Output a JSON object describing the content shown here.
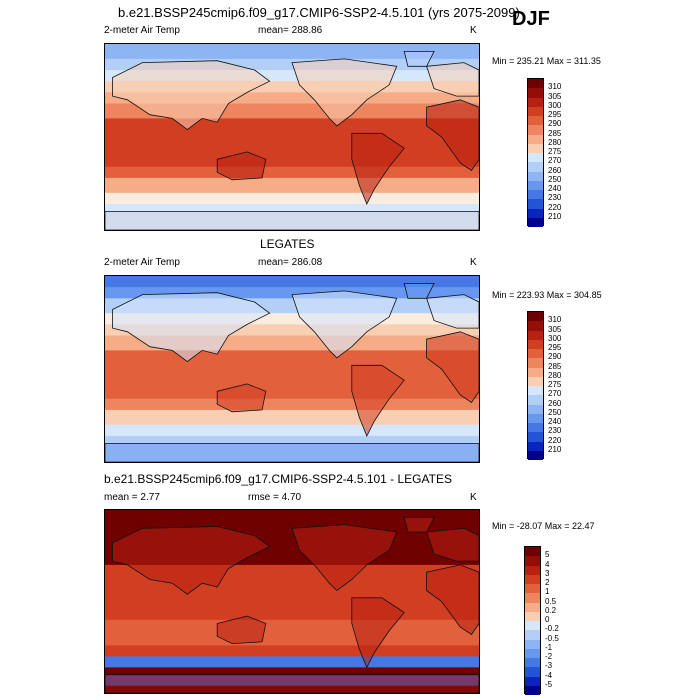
{
  "figure": {
    "title": "b.e21.BSSP245cmip6.f09_g17.CMIP6-SSP2-4.5.101 (yrs 2075-2099)",
    "season": "DJF"
  },
  "colors": {
    "palette_temp": [
      "#00008f",
      "#0a24c0",
      "#2353d6",
      "#4677e6",
      "#6797ee",
      "#8db4f3",
      "#b2cff7",
      "#d6e6fb",
      "#fbece0",
      "#f9cfb4",
      "#f5ac87",
      "#ee855f",
      "#e3603c",
      "#d23e22",
      "#b82012",
      "#960c06",
      "#6e0000"
    ],
    "palette_diff": [
      "#00008f",
      "#0a24c0",
      "#2353d6",
      "#4677e6",
      "#6797ee",
      "#8db4f3",
      "#b2cff7",
      "#d6e6fb",
      "#fbece0",
      "#f9cfb4",
      "#f5ac87",
      "#ee855f",
      "#e3603c",
      "#d23e22",
      "#b82012",
      "#960c06",
      "#6e0000"
    ]
  },
  "panels": [
    {
      "id": "model",
      "section_title": "",
      "variable": "2-meter Air Temp",
      "mean_text": "mean= 288.86",
      "units": "K",
      "minmax": "Min = 235.21 Max = 311.35",
      "colorbar": [
        "310",
        "305",
        "300",
        "295",
        "290",
        "285",
        "280",
        "275",
        "270",
        "260",
        "250",
        "240",
        "230",
        "220",
        "210"
      ],
      "overlay": "Model surface air temperature field (DJF mean)"
    },
    {
      "id": "obs",
      "section_title": "LEGATES",
      "variable": "2-meter Air Temp",
      "mean_text": "mean= 286.08",
      "units": "K",
      "minmax": "Min = 223.93 Max = 304.85",
      "colorbar": [
        "310",
        "305",
        "300",
        "295",
        "290",
        "285",
        "280",
        "275",
        "270",
        "260",
        "250",
        "240",
        "230",
        "220",
        "210"
      ],
      "overlay": "LEGATES observed surface air temperature field"
    },
    {
      "id": "diff",
      "section_title": "b.e21.BSSP245cmip6.f09_g17.CMIP6-SSP2-4.5.101 - LEGATES",
      "variable": "",
      "mean_text": "mean =   2.77",
      "rmse_text": "rmse =   4.70",
      "units": "K",
      "minmax": "Min = -28.07 Max =  22.47",
      "colorbar": [
        "5",
        "4",
        "3",
        "2",
        "1",
        "0.5",
        "0.2",
        "0",
        "-0.2",
        "-0.5",
        "-1",
        "-2",
        "-3",
        "-4",
        "-5"
      ],
      "overlay": "Model minus LEGATES difference field"
    }
  ]
}
